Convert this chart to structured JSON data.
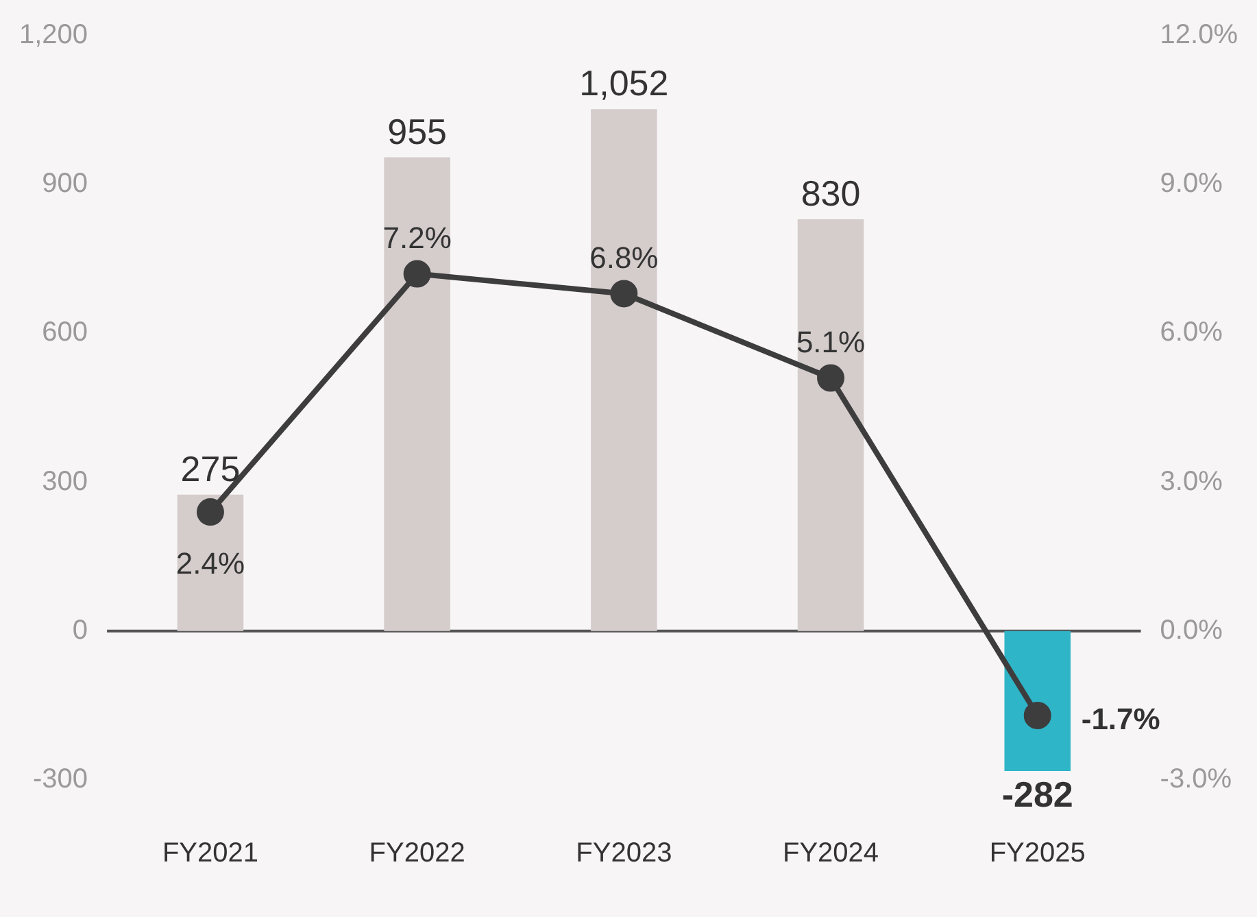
{
  "chart_data": {
    "type": "bar",
    "categories": [
      "FY2021",
      "FY2022",
      "FY2023",
      "FY2024",
      "FY2025"
    ],
    "series": [
      {
        "colors": [
          "#d5cccc",
          "#d5cccc",
          "#d5cccc",
          "#d5cccc",
          "#2fb5c8"
        ],
        "values": [
          275,
          955,
          1052,
          830,
          -282
        ],
        "value_labels": [
          "275",
          "955",
          "1,052",
          "830",
          "-282"
        ]
      },
      {
        "type": "line",
        "axis": "y2",
        "color": "#3d3d3d",
        "values": [
          2.4,
          7.2,
          6.8,
          5.1,
          -1.7
        ],
        "value_labels": [
          "2.4%",
          "7.2%",
          "6.8%",
          "5.1%",
          "-1.7%"
        ]
      }
    ],
    "ylim": [
      -300,
      1200
    ],
    "yticks": [
      {
        "value": -300,
        "label": "-300"
      },
      0,
      300,
      600,
      900,
      {
        "value": 1200,
        "label": "1,200"
      }
    ],
    "y2lim": [
      -3,
      12
    ],
    "y2ticks": [
      {
        "value": -3,
        "label": "-3.0%"
      },
      {
        "value": 0,
        "label": "0.0%"
      },
      {
        "value": 3,
        "label": "3.0%"
      },
      {
        "value": 6,
        "label": "6.0%"
      },
      {
        "value": 9,
        "label": "9.0%"
      },
      {
        "value": 12,
        "label": "12.0%"
      }
    ],
    "ref_lines": [
      {
        "axis": "y",
        "value": 0,
        "color": "#555555"
      }
    ],
    "data_labels": true,
    "grid": false,
    "legend": false,
    "marker": "circle",
    "line_style": "solid"
  }
}
